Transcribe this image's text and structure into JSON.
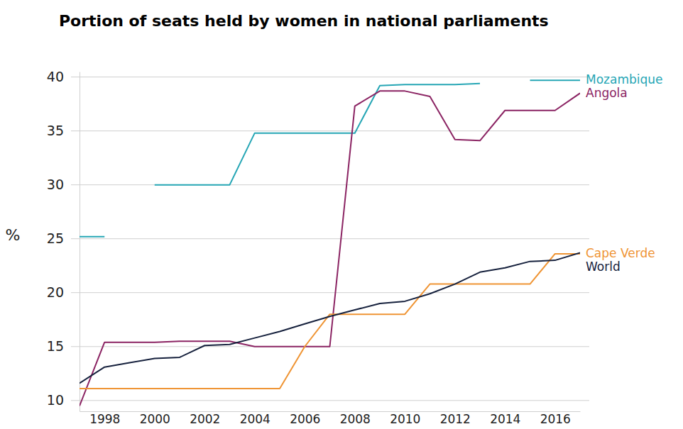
{
  "chart_data": {
    "type": "line",
    "title": "Portion of seats held by women in national parliaments",
    "y_label": "%",
    "x": [
      1997,
      1998,
      1999,
      2000,
      2001,
      2002,
      2003,
      2004,
      2005,
      2006,
      2007,
      2008,
      2009,
      2010,
      2011,
      2012,
      2013,
      2014,
      2015,
      2016,
      2017
    ],
    "xlim": [
      1997,
      2017
    ],
    "xticks": [
      1998,
      2000,
      2002,
      2004,
      2006,
      2008,
      2010,
      2012,
      2014,
      2016
    ],
    "ylim": [
      9,
      40.5
    ],
    "yticks": [
      10,
      15,
      20,
      25,
      30,
      35,
      40
    ],
    "grid": true,
    "series": [
      {
        "name": "Mozambique",
        "color": "#26a6b5",
        "values": [
          25.2,
          25.2,
          null,
          30,
          30,
          30,
          30,
          34.8,
          34.8,
          34.8,
          34.8,
          34.8,
          39.2,
          39.3,
          39.3,
          39.3,
          39.4,
          null,
          39.7,
          39.7,
          39.7
        ]
      },
      {
        "name": "Angola",
        "color": "#8b2463",
        "values": [
          9.5,
          15.4,
          15.4,
          15.4,
          15.5,
          15.5,
          15.5,
          15.0,
          15.0,
          15.0,
          15.0,
          37.3,
          38.7,
          38.7,
          38.2,
          34.2,
          34.1,
          36.9,
          36.9,
          36.9,
          38.5
        ]
      },
      {
        "name": "Cape Verde",
        "color": "#ef9433",
        "values": [
          11.1,
          11.1,
          11.1,
          11.1,
          11.1,
          11.1,
          11.1,
          11.1,
          11.1,
          15.0,
          18.0,
          18.0,
          18.0,
          18.0,
          20.8,
          20.8,
          20.8,
          20.8,
          20.8,
          23.6,
          23.6
        ]
      },
      {
        "name": "World",
        "color": "#16213d",
        "values": [
          11.6,
          13.1,
          13.5,
          13.9,
          14.0,
          15.1,
          15.2,
          15.8,
          16.4,
          17.1,
          17.8,
          18.4,
          19.0,
          19.2,
          19.9,
          20.8,
          21.9,
          22.3,
          22.9,
          23.0,
          23.7
        ]
      }
    ]
  }
}
